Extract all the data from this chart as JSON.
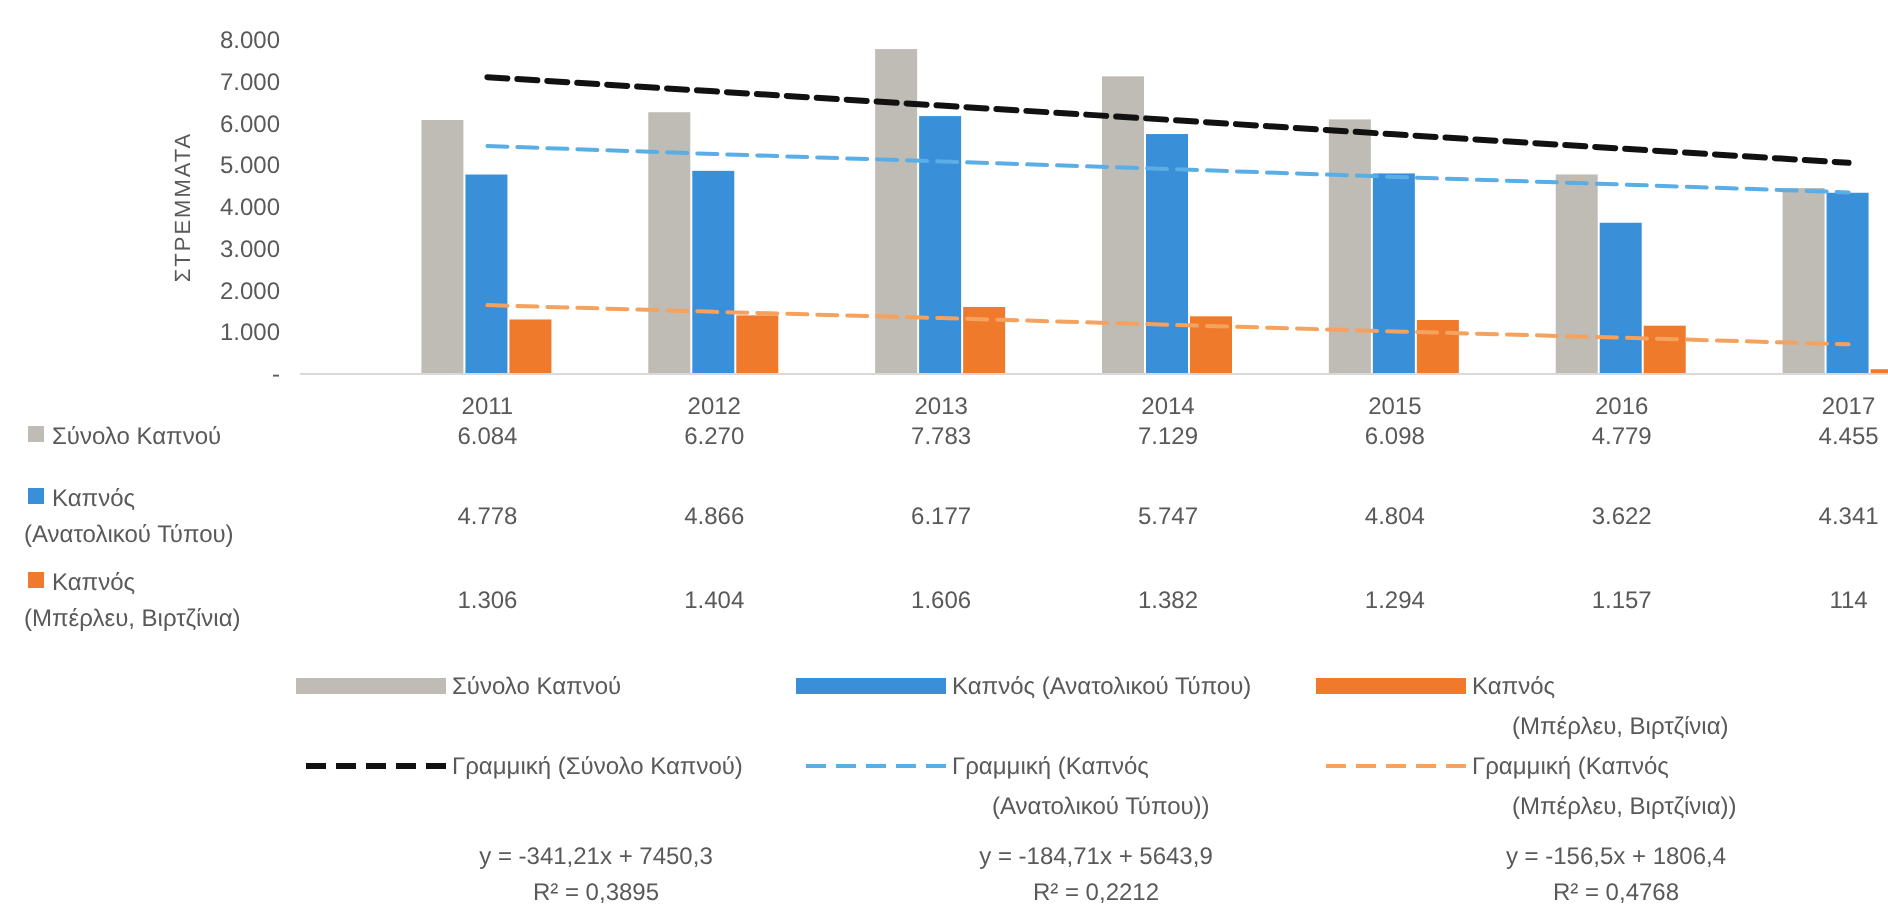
{
  "chart_data": {
    "type": "bar",
    "ylabel": "ΣΤΡΕΜΜΑΤΑ",
    "categories": [
      "2011",
      "2012",
      "2013",
      "2014",
      "2015",
      "2016",
      "2017"
    ],
    "ylim": [
      0,
      8000
    ],
    "yticks": [
      {
        "value": 0,
        "label": "-"
      },
      {
        "value": 1000,
        "label": "1.000"
      },
      {
        "value": 2000,
        "label": "2.000"
      },
      {
        "value": 3000,
        "label": "3.000"
      },
      {
        "value": 4000,
        "label": "4.000"
      },
      {
        "value": 5000,
        "label": "5.000"
      },
      {
        "value": 6000,
        "label": "6.000"
      },
      {
        "value": 7000,
        "label": "7.000"
      },
      {
        "value": 8000,
        "label": "8.000"
      }
    ],
    "series": [
      {
        "name": "Σύνολο Καπνού",
        "type": "bar",
        "color": "#bfbbb5",
        "values": [
          6084,
          6270,
          7783,
          7129,
          6098,
          4779,
          4455
        ],
        "value_labels": [
          "6.084",
          "6.270",
          "7.783",
          "7.129",
          "6.098",
          "4.779",
          "4.455"
        ]
      },
      {
        "name": "Καπνός (Ανατολικού Τύπου)",
        "type": "bar",
        "color": "#3a8fd9",
        "values": [
          4778,
          4866,
          6177,
          5747,
          4804,
          3622,
          4341
        ],
        "value_labels": [
          "4.778",
          "4.866",
          "6.177",
          "5.747",
          "4.804",
          "3.622",
          "4.341"
        ]
      },
      {
        "name": "Καπνός (Μπέρλευ, Βιρτζίνια)",
        "type": "bar",
        "color": "#f07a2c",
        "values": [
          1306,
          1404,
          1606,
          1382,
          1294,
          1157,
          114
        ],
        "value_labels": [
          "1.306",
          "1.404",
          "1.606",
          "1.382",
          "1.294",
          "1.157",
          "114"
        ]
      },
      {
        "name": "Γραμμική (Σύνολο Καπνού)",
        "type": "line",
        "color": "#111111",
        "line_style": "dashed",
        "values": [
          7110,
          6770,
          6430,
          6090,
          5740,
          5400,
          5060
        ]
      },
      {
        "name": "Γραμμική (Καπνός (Ανατολικού Τύπου))",
        "type": "line",
        "color": "#5aaee6",
        "line_style": "dashed",
        "values": [
          5460,
          5270,
          5090,
          4910,
          4720,
          4540,
          4350
        ]
      },
      {
        "name": "Γραμμική (Καπνός (Μπέρλευ, Βιρτζίνια))",
        "type": "line",
        "color": "#f5a25e",
        "line_style": "dashed",
        "values": [
          1650,
          1490,
          1340,
          1180,
          1020,
          870,
          710
        ]
      }
    ],
    "legend": "bottom",
    "marker": "none",
    "annotations": [
      "y = -341,21x + 7450,3",
      "R² = 0,3895",
      "y = -184,71x + 5643,9",
      "R² = 0,2212",
      "y = -156,5x + 1806,4",
      "R² = 0,4768"
    ]
  }
}
